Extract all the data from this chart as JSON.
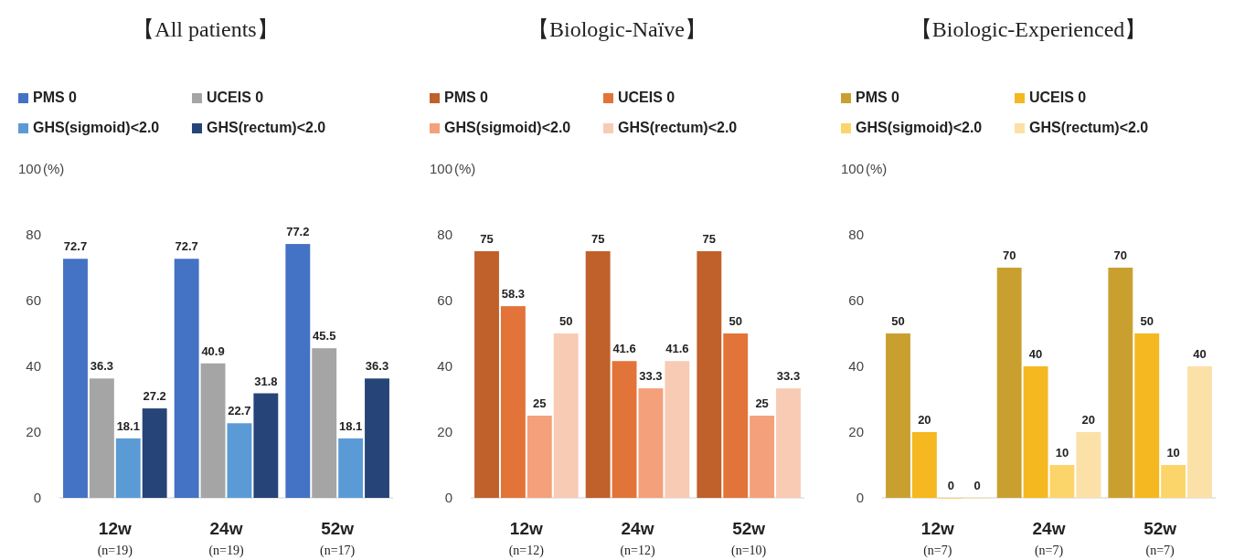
{
  "chart_data": [
    {
      "type": "bar",
      "title": "【All patients】",
      "ylabel": "(%)",
      "categories": [
        "12w\n(n=19)",
        "24w\n(n=19)",
        "52w\n(n=17)"
      ],
      "ylim": [
        0,
        100
      ],
      "yticks": [
        0,
        20,
        40,
        60,
        80,
        100
      ],
      "legend": "top left",
      "data_labels": true,
      "series": [
        {
          "name": "PMS 0",
          "color": "#4472c4",
          "values": [
            72.7,
            72.7,
            77.2
          ]
        },
        {
          "name": "UCEIS 0",
          "color": "#a5a5a5",
          "values": [
            36.3,
            40.9,
            45.5
          ]
        },
        {
          "name": "GHS(sigmoid)<2.0",
          "color": "#5b9bd5",
          "values": [
            18.1,
            22.7,
            18.1
          ]
        },
        {
          "name": "GHS(rectum)<2.0",
          "color": "#264478",
          "values": [
            27.2,
            31.8,
            36.3
          ]
        }
      ]
    },
    {
      "type": "bar",
      "title": "【Biologic-Naïve】",
      "ylabel": "(%)",
      "categories": [
        "12w\n(n=12)",
        "24w\n(n=12)",
        "52w\n(n=10)"
      ],
      "ylim": [
        0,
        100
      ],
      "yticks": [
        0,
        20,
        40,
        60,
        80,
        100
      ],
      "legend": "top left",
      "data_labels": true,
      "series": [
        {
          "name": "PMS 0",
          "color": "#c0602a",
          "values": [
            75,
            75,
            75
          ]
        },
        {
          "name": "UCEIS 0",
          "color": "#e2743a",
          "values": [
            58.3,
            41.6,
            50
          ]
        },
        {
          "name": "GHS(sigmoid)<2.0",
          "color": "#f4a07a",
          "values": [
            25,
            33.3,
            25
          ]
        },
        {
          "name": "GHS(rectum)<2.0",
          "color": "#f8cbb4",
          "values": [
            50,
            41.6,
            33.3
          ]
        }
      ]
    },
    {
      "type": "bar",
      "title": "【Biologic-Experienced】",
      "ylabel": "(%)",
      "categories": [
        "12w\n(n=7)",
        "24w\n(n=7)",
        "52w\n(n=7)"
      ],
      "ylim": [
        0,
        100
      ],
      "yticks": [
        0,
        20,
        40,
        60,
        80,
        100
      ],
      "legend": "top left",
      "data_labels": true,
      "series": [
        {
          "name": "PMS 0",
          "color": "#c9a030",
          "values": [
            50,
            70,
            70
          ]
        },
        {
          "name": "UCEIS 0",
          "color": "#f5b820",
          "values": [
            20,
            40,
            50
          ]
        },
        {
          "name": "GHS(sigmoid)<2.0",
          "color": "#fbd56a",
          "values": [
            0,
            10,
            10
          ]
        },
        {
          "name": "GHS(rectum)<2.0",
          "color": "#fbe0a8",
          "values": [
            0,
            20,
            40
          ]
        }
      ]
    }
  ]
}
